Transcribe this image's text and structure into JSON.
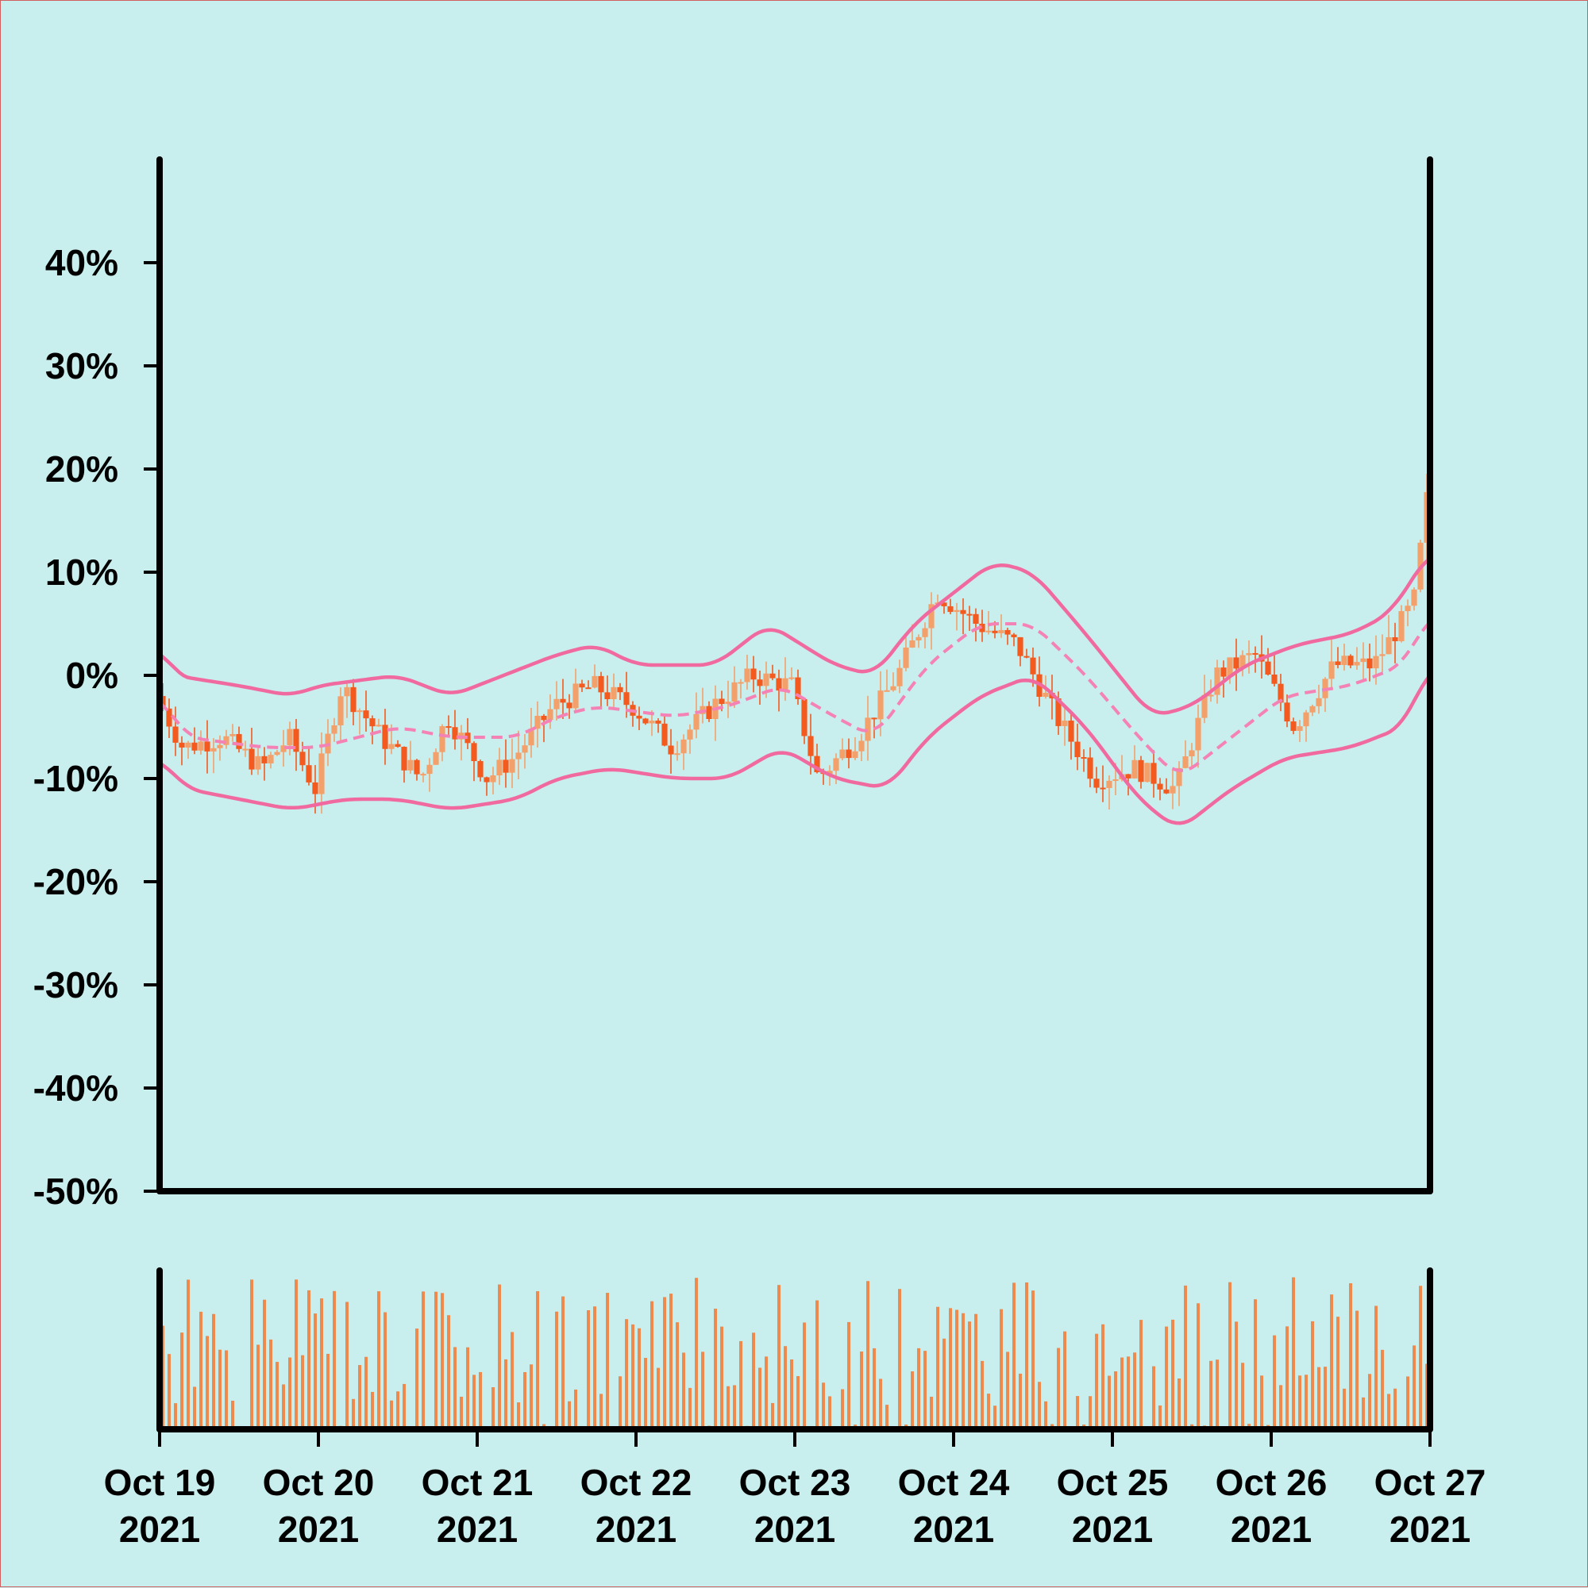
{
  "colors": {
    "background": "#c9eeee",
    "axis": "#000000",
    "candle_up": "#f4a06a",
    "candle_down": "#f45a1e",
    "band": "#f06aa0",
    "band_mid": "#f482b4",
    "volume": "#ee8a4e"
  },
  "chart_data": [
    {
      "type": "candlestick",
      "title": "",
      "xlabel": "",
      "ylabel": "",
      "x_range": [
        "2021-10-19",
        "2021-10-27"
      ],
      "ylim": [
        -50,
        50
      ],
      "y_ticks": [
        40,
        30,
        20,
        10,
        0,
        -10,
        -20,
        -30,
        -40,
        -50
      ],
      "y_tick_labels": [
        "40%",
        "30%",
        "20%",
        "10%",
        "0%",
        "-10%",
        "-20%",
        "-30%",
        "-40%",
        "-50%"
      ],
      "x_ticks": [
        "2021-10-19",
        "2021-10-20",
        "2021-10-21",
        "2021-10-22",
        "2021-10-23",
        "2021-10-24",
        "2021-10-25",
        "2021-10-26",
        "2021-10-27"
      ],
      "x_tick_labels": [
        [
          "Oct 19",
          "2021"
        ],
        [
          "Oct 20",
          "2021"
        ],
        [
          "Oct 21",
          "2021"
        ],
        [
          "Oct 22",
          "2021"
        ],
        [
          "Oct 23",
          "2021"
        ],
        [
          "Oct 24",
          "2021"
        ],
        [
          "Oct 25",
          "2021"
        ],
        [
          "Oct 26",
          "2021"
        ],
        [
          "Oct 27",
          "2021"
        ]
      ],
      "grid": false,
      "price_path": [
        [
          "2021-10-19 00:00",
          -2
        ],
        [
          "2021-10-19 04:00",
          -7
        ],
        [
          "2021-10-19 10:00",
          -6
        ],
        [
          "2021-10-19 16:00",
          -9
        ],
        [
          "2021-10-19 20:00",
          -6
        ],
        [
          "2021-10-20 00:00",
          -11
        ],
        [
          "2021-10-20 04:00",
          -1
        ],
        [
          "2021-10-20 10:00",
          -6
        ],
        [
          "2021-10-20 16:00",
          -10
        ],
        [
          "2021-10-20 20:00",
          -4
        ],
        [
          "2021-10-21 02:00",
          -10
        ],
        [
          "2021-10-21 06:00",
          -8
        ],
        [
          "2021-10-21 12:00",
          -3
        ],
        [
          "2021-10-21 18:00",
          -1
        ],
        [
          "2021-10-22 00:00",
          -3
        ],
        [
          "2021-10-22 06:00",
          -7
        ],
        [
          "2021-10-22 12:00",
          -3
        ],
        [
          "2021-10-22 18:00",
          0
        ],
        [
          "2021-10-23 00:00",
          -1
        ],
        [
          "2021-10-23 04:00",
          -10
        ],
        [
          "2021-10-23 10:00",
          -6
        ],
        [
          "2021-10-23 16:00",
          0
        ],
        [
          "2021-10-23 22:00",
          8
        ],
        [
          "2021-10-24 04:00",
          5
        ],
        [
          "2021-10-24 10:00",
          3
        ],
        [
          "2021-10-24 16:00",
          -4
        ],
        [
          "2021-10-24 22:00",
          -10
        ],
        [
          "2021-10-25 04:00",
          -9
        ],
        [
          "2021-10-25 10:00",
          -11
        ],
        [
          "2021-10-25 16:00",
          0
        ],
        [
          "2021-10-25 22:00",
          2
        ],
        [
          "2021-10-26 04:00",
          -5
        ],
        [
          "2021-10-26 10:00",
          1
        ],
        [
          "2021-10-26 16:00",
          1
        ],
        [
          "2021-10-26 22:00",
          7
        ],
        [
          "2021-10-27 00:00",
          17
        ]
      ],
      "bollinger": {
        "upper": [
          [
            "2021-10-19 00:00",
            3
          ],
          [
            "2021-10-19 02:00",
            0
          ],
          [
            "2021-10-19 12:00",
            -1
          ],
          [
            "2021-10-19 20:00",
            -2
          ],
          [
            "2021-10-20 00:00",
            -1
          ],
          [
            "2021-10-20 12:00",
            0
          ],
          [
            "2021-10-20 20:00",
            -2
          ],
          [
            "2021-10-21 00:00",
            -1
          ],
          [
            "2021-10-21 12:00",
            2
          ],
          [
            "2021-10-21 18:00",
            3
          ],
          [
            "2021-10-22 00:00",
            1
          ],
          [
            "2021-10-22 12:00",
            1
          ],
          [
            "2021-10-22 20:00",
            5
          ],
          [
            "2021-10-23 06:00",
            1
          ],
          [
            "2021-10-23 12:00",
            0
          ],
          [
            "2021-10-23 18:00",
            5
          ],
          [
            "2021-10-24 06:00",
            11
          ],
          [
            "2021-10-24 12:00",
            10
          ],
          [
            "2021-10-24 20:00",
            4
          ],
          [
            "2021-10-25 06:00",
            -4
          ],
          [
            "2021-10-25 12:00",
            -3
          ],
          [
            "2021-10-25 20:00",
            1
          ],
          [
            "2021-10-26 04:00",
            3
          ],
          [
            "2021-10-26 12:00",
            4
          ],
          [
            "2021-10-26 18:00",
            6
          ],
          [
            "2021-10-27 00:00",
            12
          ]
        ],
        "middle": [
          [
            "2021-10-19 00:00",
            -2
          ],
          [
            "2021-10-19 04:00",
            -6
          ],
          [
            "2021-10-19 16:00",
            -7
          ],
          [
            "2021-10-20 00:00",
            -7
          ],
          [
            "2021-10-20 12:00",
            -5
          ],
          [
            "2021-10-20 20:00",
            -6
          ],
          [
            "2021-10-21 06:00",
            -6
          ],
          [
            "2021-10-21 12:00",
            -4
          ],
          [
            "2021-10-21 18:00",
            -3
          ],
          [
            "2021-10-22 06:00",
            -4
          ],
          [
            "2021-10-22 14:00",
            -3
          ],
          [
            "2021-10-22 22:00",
            -1
          ],
          [
            "2021-10-23 06:00",
            -4
          ],
          [
            "2021-10-23 12:00",
            -6
          ],
          [
            "2021-10-23 20:00",
            1
          ],
          [
            "2021-10-24 04:00",
            5
          ],
          [
            "2021-10-24 12:00",
            5
          ],
          [
            "2021-10-24 20:00",
            0
          ],
          [
            "2021-10-25 04:00",
            -6
          ],
          [
            "2021-10-25 10:00",
            -10
          ],
          [
            "2021-10-25 18:00",
            -6
          ],
          [
            "2021-10-26 02:00",
            -2
          ],
          [
            "2021-10-26 12:00",
            -1
          ],
          [
            "2021-10-26 20:00",
            1
          ],
          [
            "2021-10-27 00:00",
            6
          ]
        ],
        "lower": [
          [
            "2021-10-19 00:00",
            -8
          ],
          [
            "2021-10-19 04:00",
            -11
          ],
          [
            "2021-10-19 12:00",
            -12
          ],
          [
            "2021-10-19 20:00",
            -13
          ],
          [
            "2021-10-20 04:00",
            -12
          ],
          [
            "2021-10-20 12:00",
            -12
          ],
          [
            "2021-10-20 20:00",
            -13
          ],
          [
            "2021-10-21 06:00",
            -12
          ],
          [
            "2021-10-21 12:00",
            -10
          ],
          [
            "2021-10-21 20:00",
            -9
          ],
          [
            "2021-10-22 06:00",
            -10
          ],
          [
            "2021-10-22 14:00",
            -10
          ],
          [
            "2021-10-22 22:00",
            -7
          ],
          [
            "2021-10-23 06:00",
            -10
          ],
          [
            "2021-10-23 14:00",
            -11
          ],
          [
            "2021-10-23 20:00",
            -6
          ],
          [
            "2021-10-24 04:00",
            -2
          ],
          [
            "2021-10-24 12:00",
            0
          ],
          [
            "2021-10-24 20:00",
            -5
          ],
          [
            "2021-10-25 04:00",
            -12
          ],
          [
            "2021-10-25 10:00",
            -15
          ],
          [
            "2021-10-25 18:00",
            -11
          ],
          [
            "2021-10-26 02:00",
            -8
          ],
          [
            "2021-10-26 12:00",
            -7
          ],
          [
            "2021-10-26 20:00",
            -5
          ],
          [
            "2021-10-27 00:00",
            1
          ]
        ]
      },
      "candle_count": 200
    },
    {
      "type": "bar",
      "title": "",
      "xlabel": "",
      "ylabel": "",
      "x_range": [
        "2021-10-19",
        "2021-10-27"
      ],
      "bar_count": 200,
      "relative_volume_range": [
        0,
        1
      ]
    }
  ]
}
